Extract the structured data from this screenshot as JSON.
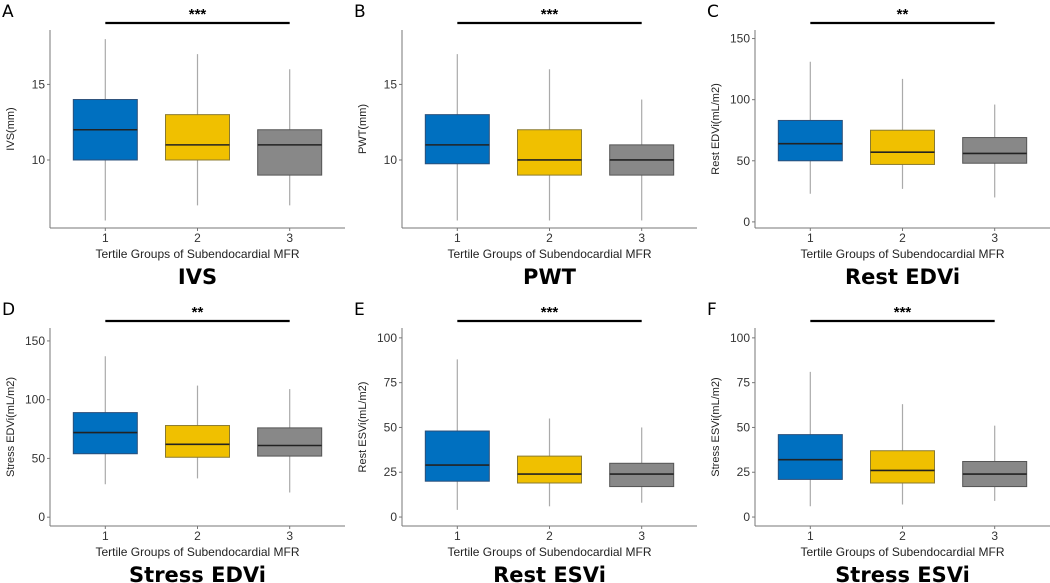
{
  "colors": {
    "group1": "#0070C0",
    "group2": "#F0C000",
    "group3": "#888888"
  },
  "chart_data": [
    {
      "type": "box",
      "panel": "A",
      "title": "IVS",
      "xlabel": "Tertile Groups of Subendocardial MFR",
      "ylabel": "IVS(mm)",
      "categories": [
        "1",
        "2",
        "3"
      ],
      "yticks": [
        10,
        15
      ],
      "ylim": [
        5.5,
        18.6
      ],
      "significance": "***",
      "boxes": [
        {
          "min": 6,
          "q1": 10,
          "median": 12,
          "q3": 14,
          "max": 18
        },
        {
          "min": 7,
          "q1": 10,
          "median": 11,
          "q3": 13,
          "max": 17
        },
        {
          "min": 7,
          "q1": 9,
          "median": 11,
          "q3": 12,
          "max": 16
        }
      ]
    },
    {
      "type": "box",
      "panel": "B",
      "title": "PWT",
      "xlabel": "Tertile Groups of Subendocardial MFR",
      "ylabel": "PWT(mm)",
      "categories": [
        "1",
        "2",
        "3"
      ],
      "yticks": [
        10,
        15
      ],
      "ylim": [
        5.5,
        18.6
      ],
      "significance": "***",
      "boxes": [
        {
          "min": 6,
          "q1": 9.75,
          "median": 11,
          "q3": 13,
          "max": 17
        },
        {
          "min": 6,
          "q1": 9,
          "median": 10,
          "q3": 12,
          "max": 16
        },
        {
          "min": 6,
          "q1": 9,
          "median": 10,
          "q3": 11,
          "max": 14
        }
      ]
    },
    {
      "type": "box",
      "panel": "C",
      "title": "Rest EDVi",
      "xlabel": "Tertile Groups of Subendocardial MFR",
      "ylabel": "Rest EDVi(mL/m2)",
      "categories": [
        "1",
        "2",
        "3"
      ],
      "yticks": [
        0,
        50,
        100,
        150
      ],
      "ylim": [
        -5,
        157
      ],
      "significance": "**",
      "boxes": [
        {
          "min": 23,
          "q1": 50,
          "median": 64,
          "q3": 83,
          "max": 131
        },
        {
          "min": 27,
          "q1": 47,
          "median": 57,
          "q3": 75,
          "max": 117
        },
        {
          "min": 20,
          "q1": 48,
          "median": 56,
          "q3": 69,
          "max": 96
        }
      ]
    },
    {
      "type": "box",
      "panel": "D",
      "title": "Stress EDVi",
      "xlabel": "Tertile Groups of Subendocardial MFR",
      "ylabel": "Stress EDVi(mL/m2)",
      "categories": [
        "1",
        "2",
        "3"
      ],
      "yticks": [
        0,
        50,
        100,
        150
      ],
      "ylim": [
        -7.5,
        161
      ],
      "significance": "**",
      "boxes": [
        {
          "min": 28,
          "q1": 54,
          "median": 72,
          "q3": 89,
          "max": 137
        },
        {
          "min": 33,
          "q1": 51,
          "median": 62,
          "q3": 78,
          "max": 112
        },
        {
          "min": 21,
          "q1": 52,
          "median": 61,
          "q3": 76,
          "max": 109
        }
      ]
    },
    {
      "type": "box",
      "panel": "E",
      "title": "Rest ESVi",
      "xlabel": "Tertile Groups of Subendocardial MFR",
      "ylabel": "Rest ESVi(mL/m2)",
      "categories": [
        "1",
        "2",
        "3"
      ],
      "yticks": [
        0,
        25,
        50,
        75,
        100
      ],
      "ylim": [
        -5,
        105.5
      ],
      "significance": "***",
      "boxes": [
        {
          "min": 4,
          "q1": 20,
          "median": 29,
          "q3": 48,
          "max": 88
        },
        {
          "min": 6,
          "q1": 19,
          "median": 24,
          "q3": 34,
          "max": 55
        },
        {
          "min": 8,
          "q1": 17,
          "median": 24,
          "q3": 30,
          "max": 50
        }
      ]
    },
    {
      "type": "box",
      "panel": "F",
      "title": "Stress ESVi",
      "xlabel": "Tertile Groups of Subendocardial MFR",
      "ylabel": "Stress ESVi(mL/m2)",
      "categories": [
        "1",
        "2",
        "3"
      ],
      "yticks": [
        0,
        25,
        50,
        75,
        100
      ],
      "ylim": [
        -5,
        105.5
      ],
      "significance": "***",
      "boxes": [
        {
          "min": 6,
          "q1": 21,
          "median": 32,
          "q3": 46,
          "max": 81
        },
        {
          "min": 7,
          "q1": 19,
          "median": 26,
          "q3": 37,
          "max": 63
        },
        {
          "min": 9,
          "q1": 17,
          "median": 24,
          "q3": 31,
          "max": 51
        }
      ]
    }
  ]
}
